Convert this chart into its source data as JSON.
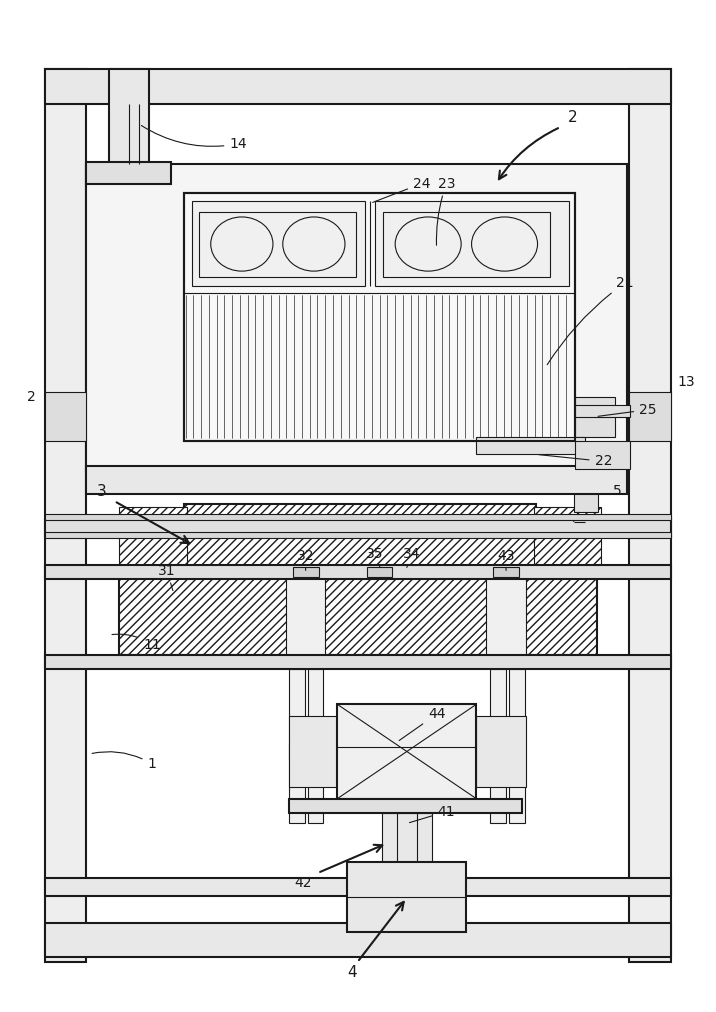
{
  "bg_color": "#ffffff",
  "lc": "#1a1a1a",
  "fig_width": 7.02,
  "fig_height": 10.0,
  "lw_main": 1.5,
  "lw_thin": 0.8,
  "lw_mid": 1.1,
  "fc_white": "#ffffff",
  "fc_light": "#f2f2f2",
  "fc_mid": "#e0e0e0",
  "fc_gray": "#c8c8c8",
  "fc_dark": "#b0b0b0",
  "fin_color": "#c0c0c0",
  "hatch_color": "#888888"
}
